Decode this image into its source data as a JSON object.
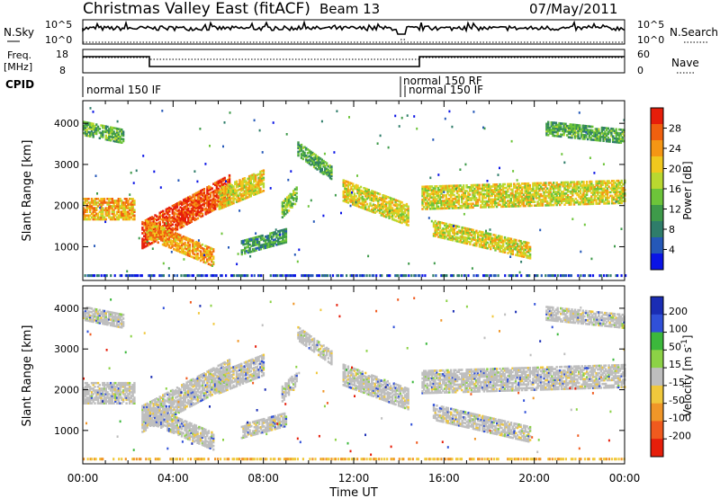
{
  "header": {
    "title": "Christmas Valley East (fitACF)",
    "beam": "Beam 13",
    "date": "07/May/2011"
  },
  "top_panels": {
    "nsky_label": "N.Sky",
    "nsky_ticks": [
      "10^5",
      "10^0"
    ],
    "nsearch_label": "N.Search",
    "nsearch_ticks": [
      "10^5",
      "10^0"
    ],
    "freq_label_1": "Freq.",
    "freq_label_2": "[MHz]",
    "freq_ticks": [
      "18",
      "8"
    ],
    "nave_label": "Nave",
    "nave_ticks": [
      "60",
      "0"
    ],
    "cpid_label": "CPID",
    "cpid_segments": [
      "normal 150 IF",
      "normal 150 RF",
      "normal 150 IF"
    ]
  },
  "chart_data": [
    {
      "type": "heatmap",
      "name": "power-panel",
      "ylabel": "Slant Range [km]",
      "yticks": [
        "1000",
        "2000",
        "3000",
        "4000"
      ],
      "ylim": [
        180,
        4550
      ],
      "xlim_hours": [
        0,
        24
      ],
      "xtick_labels": [
        "00:00",
        "04:00",
        "08:00",
        "12:00",
        "16:00",
        "20:00",
        "00:00"
      ],
      "colorbar": {
        "label": "Power [dB]",
        "ticks": [
          "4",
          "8",
          "12",
          "16",
          "20",
          "24",
          "28"
        ],
        "colors": [
          "#0a14e6",
          "#2558b8",
          "#2f7d6a",
          "#3e9a4a",
          "#6dc43a",
          "#b9d830",
          "#f0c81e",
          "#f59614",
          "#f0600f",
          "#e61e0a"
        ],
        "range": [
          0,
          30
        ]
      }
    },
    {
      "type": "heatmap",
      "name": "velocity-panel",
      "ylabel": "Slant Range [km]",
      "yticks": [
        "1000",
        "2000",
        "3000",
        "4000"
      ],
      "ylim": [
        180,
        4550
      ],
      "xlim_hours": [
        0,
        24
      ],
      "xtick_labels": [
        "00:00",
        "04:00",
        "08:00",
        "12:00",
        "16:00",
        "20:00",
        "00:00"
      ],
      "xlabel": "Time UT",
      "colorbar": {
        "label": "Velocity [m s^-1]",
        "ticks": [
          "200",
          "100",
          "50",
          "15",
          "-15",
          "-50",
          "-100",
          "-200"
        ],
        "colors": [
          "#1a2db4",
          "#3050d8",
          "#3cb83c",
          "#8cd246",
          "#bebebe",
          "#f0c83c",
          "#f09628",
          "#f05a1e",
          "#e61e0a"
        ]
      }
    }
  ]
}
